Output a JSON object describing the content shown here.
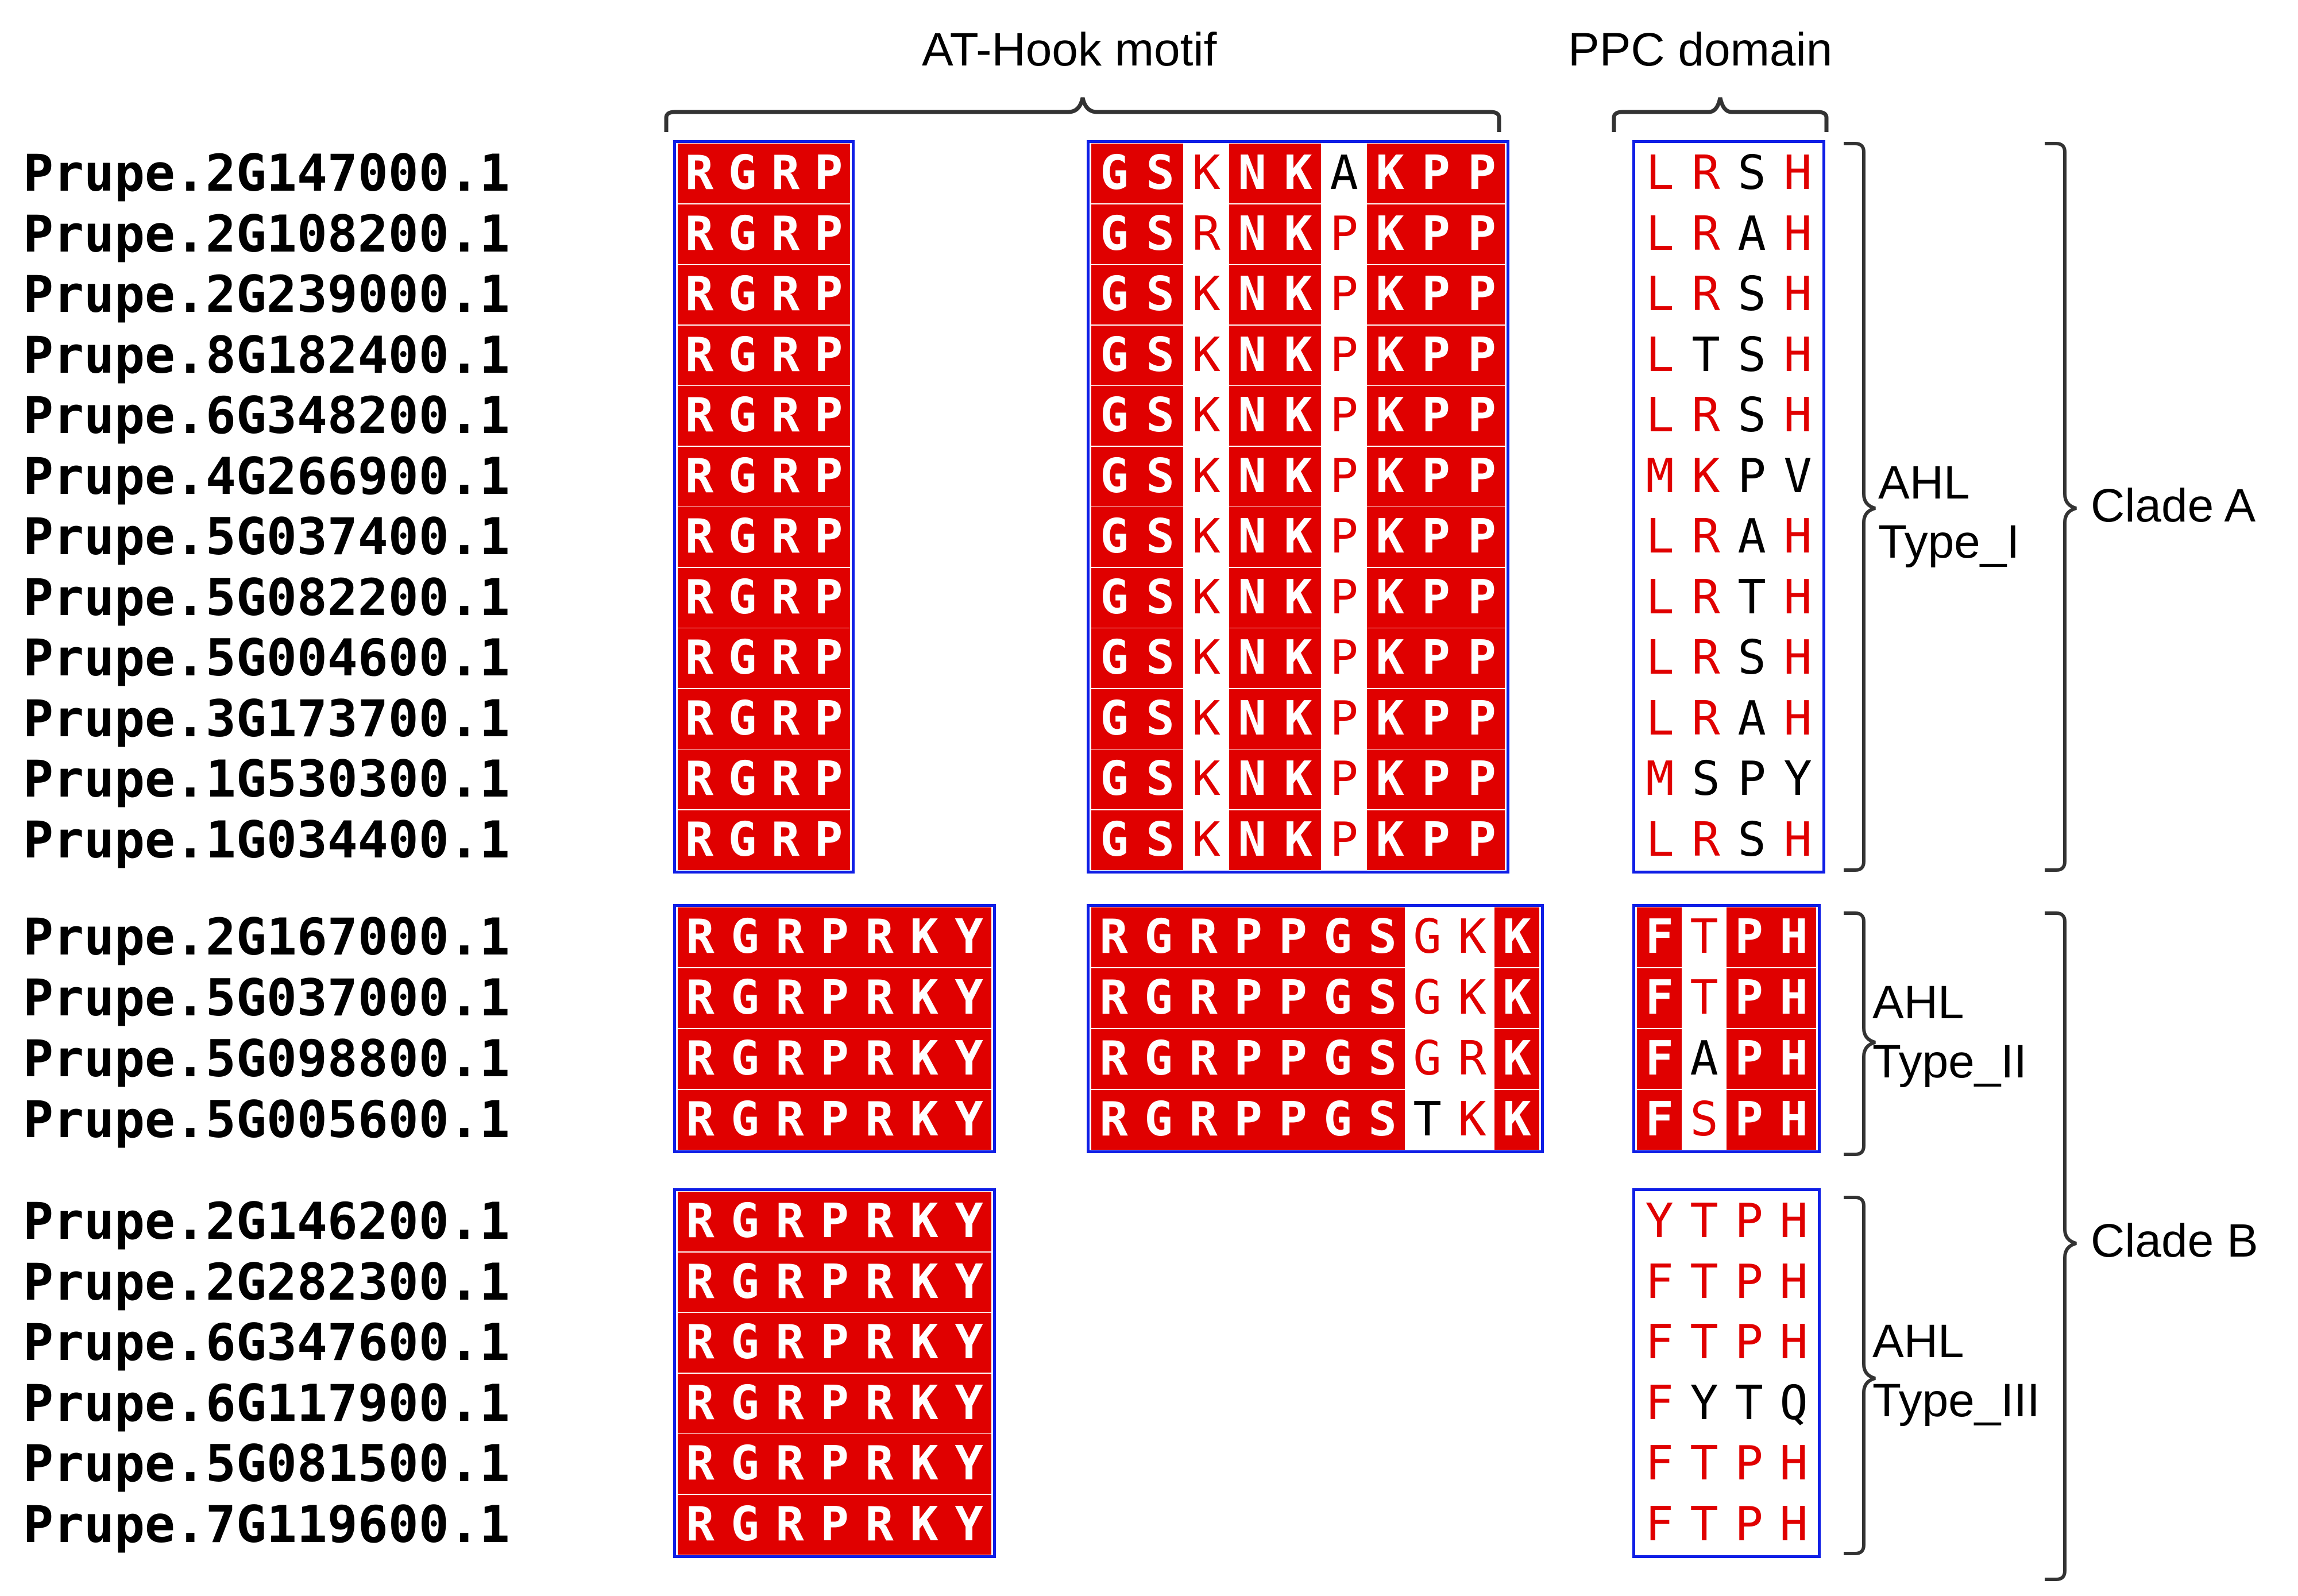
{
  "headers": {
    "athook": "AT-Hook motif",
    "ppc": "PPC domain"
  },
  "groups": {
    "type1": "AHL\nType_I",
    "type2": "AHL\nType_II",
    "type3": "AHL\nType_III",
    "cladeA": "Clade A",
    "cladeB": "Clade B"
  },
  "sequences": [
    {
      "id": "Prupe.2G147000.1",
      "b1": "RGRP",
      "b2": "GSKNKAKPP",
      "b3": "LRSH"
    },
    {
      "id": "Prupe.2G108200.1",
      "b1": "RGRP",
      "b2": "GSRNKPKPP",
      "b3": "LRAH"
    },
    {
      "id": "Prupe.2G239000.1",
      "b1": "RGRP",
      "b2": "GSKNKPKPP",
      "b3": "LRSH"
    },
    {
      "id": "Prupe.8G182400.1",
      "b1": "RGRP",
      "b2": "GSKNKPKPP",
      "b3": "LTSH"
    },
    {
      "id": "Prupe.6G348200.1",
      "b1": "RGRP",
      "b2": "GSKNKPKPP",
      "b3": "LRSH"
    },
    {
      "id": "Prupe.4G266900.1",
      "b1": "RGRP",
      "b2": "GSKNKPKPP",
      "b3": "MKPV"
    },
    {
      "id": "Prupe.5G037400.1",
      "b1": "RGRP",
      "b2": "GSKNKPKPP",
      "b3": "LRAH"
    },
    {
      "id": "Prupe.5G082200.1",
      "b1": "RGRP",
      "b2": "GSKNKPKPP",
      "b3": "LRTH"
    },
    {
      "id": "Prupe.5G004600.1",
      "b1": "RGRP",
      "b2": "GSKNKPKPP",
      "b3": "LRSH"
    },
    {
      "id": "Prupe.3G173700.1",
      "b1": "RGRP",
      "b2": "GSKNKPKPP",
      "b3": "LRAH"
    },
    {
      "id": "Prupe.1G530300.1",
      "b1": "RGRP",
      "b2": "GSKNKPKPP",
      "b3": "MSPY"
    },
    {
      "id": "Prupe.1G034400.1",
      "b1": "RGRP",
      "b2": "GSKNKPKPP",
      "b3": "LRSH"
    },
    {
      "id": "Prupe.2G167000.1",
      "b1": "RGRPRKY",
      "b2": "RGRPPGSGKK",
      "b3": "FTPH"
    },
    {
      "id": "Prupe.5G037000.1",
      "b1": "RGRPRKY",
      "b2": "RGRPPGSGKK",
      "b3": "FTPH"
    },
    {
      "id": "Prupe.5G098800.1",
      "b1": "RGRPRKY",
      "b2": "RGRPPGSGRK",
      "b3": "FAPH"
    },
    {
      "id": "Prupe.5G005600.1",
      "b1": "RGRPRKY",
      "b2": "RGRPPGSTKK",
      "b3": "FSPH"
    },
    {
      "id": "Prupe.2G146200.1",
      "b1": "RGRPRKY",
      "b2": "",
      "b3": "YTPH"
    },
    {
      "id": "Prupe.2G282300.1",
      "b1": "RGRPRKY",
      "b2": "",
      "b3": "FTPH"
    },
    {
      "id": "Prupe.6G347600.1",
      "b1": "RGRPRKY",
      "b2": "",
      "b3": "FTPH"
    },
    {
      "id": "Prupe.6G117900.1",
      "b1": "RGRPRKY",
      "b2": "",
      "b3": "FYTQ"
    },
    {
      "id": "Prupe.5G081500.1",
      "b1": "RGRPRKY",
      "b2": "",
      "b3": "FTPH"
    },
    {
      "id": "Prupe.7G119600.1",
      "b1": "RGRPRKY",
      "b2": "",
      "b3": "FTPH"
    }
  ],
  "shading_legend": {
    "identical": "#e00000",
    "similar_text": "#e00000",
    "box_border": "#0f1ee6"
  },
  "alignment_shading": {
    "block1_g1": [
      "id",
      "id",
      "id",
      "id"
    ],
    "block2_g1": [
      "id",
      "id",
      "sim",
      "id",
      "id",
      "sim",
      "id",
      "id",
      "id"
    ],
    "block2_g1_exceptions": {
      "0:5": "plain"
    },
    "block3_g1": [
      "sim",
      "sim",
      "plain",
      "sim"
    ],
    "block3_g1_exceptions": {
      "3:1": "plain",
      "5:3": "plain",
      "10:1": "plain",
      "10:2": "plain",
      "10:3": "plain",
      "5:1": "sim",
      "5:2": "plain"
    },
    "block1_g2": [
      "id",
      "id",
      "id",
      "id",
      "id",
      "id",
      "id"
    ],
    "block2_g2": [
      "id",
      "id",
      "id",
      "id",
      "id",
      "id",
      "id",
      "sim",
      "sim",
      "id"
    ],
    "block2_g2_exceptions": {
      "15:7": "plain"
    },
    "block3_g2": [
      "id",
      "sim",
      "id",
      "id"
    ],
    "block3_g2_exceptions": {
      "14:1": "plain"
    },
    "block1_g3": [
      "id",
      "id",
      "id",
      "id",
      "id",
      "id",
      "id"
    ],
    "block3_g3": [
      "sim",
      "sim",
      "sim",
      "sim"
    ],
    "block3_g3_exceptions": {
      "19:1": "plain",
      "19:2": "plain",
      "19:3": "plain"
    }
  }
}
